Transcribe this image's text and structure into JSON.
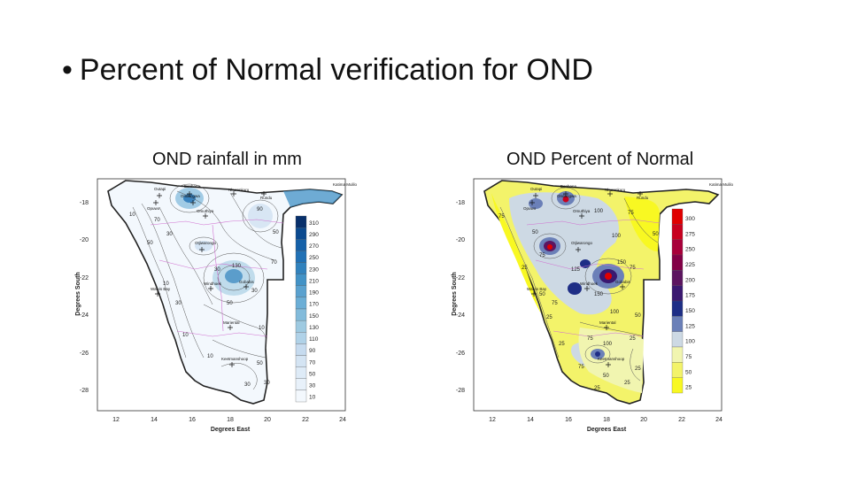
{
  "slide": {
    "bullet": "•",
    "title": "Percent of Normal verification for OND"
  },
  "left_map": {
    "caption": "OND rainfall in mm",
    "x_label": "Degrees East",
    "y_label": "Degrees South",
    "x_ticks": [
      "12",
      "14",
      "16",
      "18",
      "20",
      "22",
      "24"
    ],
    "y_ticks": [
      "-18",
      "-20",
      "-22",
      "-24",
      "-26",
      "-28"
    ],
    "legend_labels": [
      "310",
      "290",
      "270",
      "250",
      "230",
      "210",
      "190",
      "170",
      "150",
      "130",
      "110",
      "90",
      "70",
      "50",
      "30",
      "10"
    ],
    "legend_colors": [
      "#08306b",
      "#0b4a8f",
      "#1460a8",
      "#2171b5",
      "#3182bd",
      "#4292c6",
      "#5aa1cf",
      "#6baed6",
      "#82bbdb",
      "#9ecae1",
      "#b0d2e8",
      "#c6dbef",
      "#d4e4f3",
      "#deebf7",
      "#e8f1fa",
      "#f3f8fd"
    ],
    "contour_labels": [
      "10",
      "70",
      "50",
      "30",
      "90",
      "50",
      "10",
      "30",
      "10",
      "30",
      "30",
      "70",
      "50",
      "10",
      "10",
      "50",
      "30",
      "130",
      "30"
    ],
    "towns": [
      "Outapi",
      "Eenhana",
      "Nkurenkuru",
      "Rundu",
      "Katima Mulilo",
      "Opuwo",
      "Ondangwa",
      "Omuthiya",
      "Otjiwarongo",
      "Walvis Bay",
      "Windhoek",
      "Gobabis",
      "Mariental",
      "Keetmanshoop"
    ]
  },
  "right_map": {
    "caption": "OND Percent of Normal",
    "x_label": "Degrees East",
    "y_label": "Degrees South",
    "x_ticks": [
      "12",
      "14",
      "16",
      "18",
      "20",
      "22",
      "24"
    ],
    "y_ticks": [
      "-18",
      "-20",
      "-22",
      "-24",
      "-26",
      "-28"
    ],
    "legend_labels": [
      "300",
      "275",
      "250",
      "225",
      "200",
      "175",
      "150",
      "125",
      "100",
      "75",
      "50",
      "25"
    ],
    "legend_colors": [
      "#e00000",
      "#c8001e",
      "#a8003a",
      "#820046",
      "#5c1460",
      "#3a1870",
      "#1e2e86",
      "#6b80b8",
      "#cdd9e4",
      "#f1f5b0",
      "#f3f36a",
      "#f8f822"
    ],
    "contour_labels": [
      "75",
      "100",
      "75",
      "50",
      "25",
      "100",
      "50",
      "75",
      "125",
      "150",
      "75",
      "75",
      "50",
      "25",
      "50",
      "25",
      "75",
      "100",
      "100",
      "25",
      "75",
      "25",
      "50",
      "25",
      "25",
      "150"
    ],
    "towns": [
      "Outapi",
      "Eenhana",
      "Nkurenkuru",
      "Rundu",
      "Katima Mulilo",
      "Opuwo",
      "Ondangwa",
      "Omuthiya",
      "Otjiwarongo",
      "Walvis Bay",
      "Windhoek",
      "Gobabis",
      "Mariental",
      "Keetmanshoop"
    ]
  }
}
